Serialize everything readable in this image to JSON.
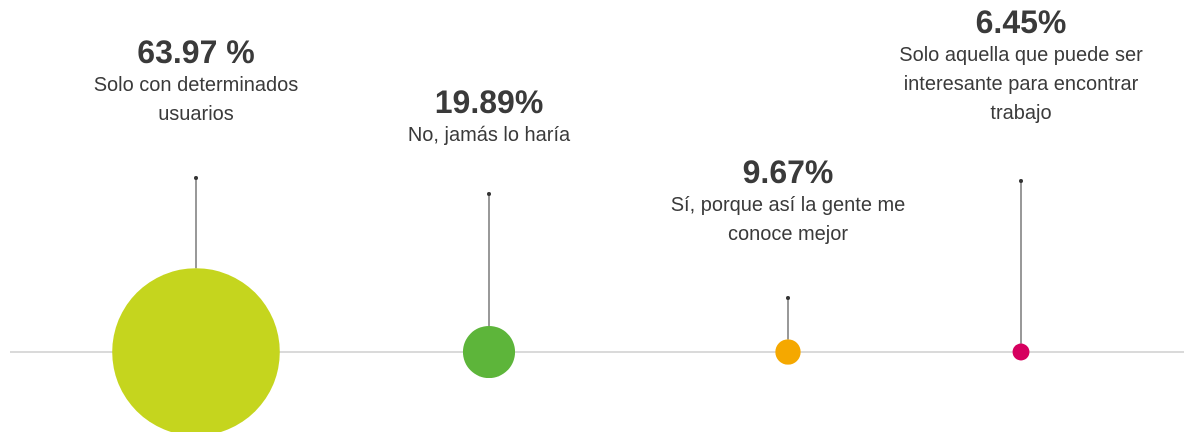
{
  "chart_data": {
    "type": "bubble",
    "categories": [
      "Solo con determinados usuarios",
      "No, jamás lo haría",
      "Sí, porque así la gente me conoce mejor",
      "Solo aquella que puede ser interesante para encontrar trabajo"
    ],
    "values": [
      63.97,
      19.89,
      9.67,
      6.45
    ],
    "value_labels": [
      "63.97 %",
      "19.89%",
      "9.67%",
      "6.45%"
    ],
    "colors": [
      "#c5d51e",
      "#5db53a",
      "#f5a800",
      "#d6005f"
    ]
  }
}
